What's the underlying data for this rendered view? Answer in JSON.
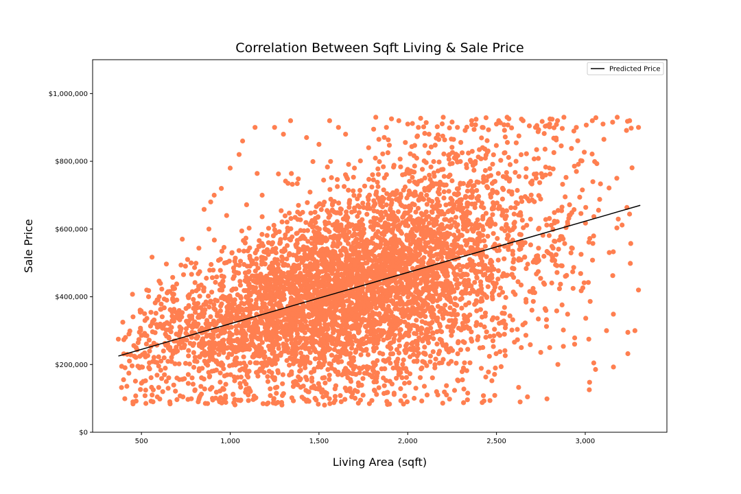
{
  "chart_data": {
    "type": "scatter",
    "title": "Correlation Between Sqft Living & Sale Price",
    "xlabel": "Living Area (sqft)",
    "ylabel": "Sale Price",
    "xlim": [
      225,
      3460
    ],
    "ylim": [
      0,
      1100000
    ],
    "x_ticks": [
      500,
      1000,
      1500,
      2000,
      2500,
      3000
    ],
    "x_tick_labels": [
      "500",
      "1,000",
      "1,500",
      "2,000",
      "2,500",
      "3,000"
    ],
    "y_ticks": [
      0,
      200000,
      400000,
      600000,
      800000,
      1000000
    ],
    "y_tick_labels": [
      "$0",
      "$200,000",
      "$400,000",
      "$600,000",
      "$800,000",
      "$1,000,000"
    ],
    "grid": false,
    "legend_position": "top-right",
    "point_color": "#ff7f50",
    "line_color": "#000000",
    "series": [
      {
        "kind": "points",
        "sample": [
          [
            370,
            275000
          ],
          [
            395,
            325000
          ],
          [
            410,
            280000
          ],
          [
            420,
            230000
          ],
          [
            430,
            290000
          ],
          [
            470,
            250000
          ],
          [
            480,
            195000
          ],
          [
            500,
            145000
          ],
          [
            510,
            150000
          ],
          [
            520,
            330000
          ],
          [
            525,
            85000
          ],
          [
            530,
            420000
          ],
          [
            540,
            400000
          ],
          [
            560,
            110000
          ],
          [
            565,
            90000
          ],
          [
            590,
            310000
          ],
          [
            600,
            400000
          ],
          [
            610,
            210000
          ],
          [
            620,
            120000
          ],
          [
            640,
            150000
          ],
          [
            650,
            415000
          ],
          [
            660,
            90000
          ],
          [
            680,
            340000
          ],
          [
            700,
            160000
          ],
          [
            720,
            300000
          ],
          [
            730,
            570000
          ],
          [
            760,
            510000
          ],
          [
            780,
            500000
          ],
          [
            800,
            210000
          ],
          [
            820,
            90000
          ],
          [
            850,
            420000
          ],
          [
            880,
            600000
          ],
          [
            890,
            680000
          ],
          [
            900,
            100000
          ],
          [
            910,
            700000
          ],
          [
            950,
            720000
          ],
          [
            980,
            640000
          ],
          [
            1000,
            780000
          ],
          [
            1020,
            240000
          ],
          [
            1050,
            820000
          ],
          [
            1070,
            860000
          ],
          [
            1110,
            520000
          ],
          [
            1140,
            900000
          ],
          [
            1180,
            700000
          ],
          [
            1220,
            180000
          ],
          [
            1250,
            900000
          ],
          [
            1300,
            880000
          ],
          [
            1340,
            920000
          ],
          [
            1380,
            650000
          ],
          [
            1430,
            870000
          ],
          [
            1500,
            850000
          ],
          [
            1560,
            920000
          ],
          [
            1610,
            900000
          ],
          [
            1650,
            880000
          ],
          [
            1700,
            780000
          ],
          [
            1780,
            840000
          ],
          [
            1820,
            930000
          ],
          [
            1880,
            900000
          ],
          [
            1950,
            920000
          ],
          [
            2000,
            910000
          ],
          [
            2060,
            900000
          ],
          [
            2120,
            880000
          ],
          [
            2200,
            930000
          ],
          [
            2280,
            900000
          ],
          [
            2360,
            920000
          ],
          [
            2420,
            900000
          ],
          [
            2500,
            910000
          ],
          [
            2560,
            930000
          ],
          [
            2650,
            920000
          ],
          [
            2720,
            900000
          ],
          [
            2800,
            910000
          ],
          [
            2880,
            930000
          ],
          [
            2950,
            900000
          ],
          [
            3040,
            920000
          ],
          [
            3100,
            910000
          ],
          [
            3180,
            930000
          ],
          [
            3250,
            920000
          ],
          [
            3300,
            900000
          ],
          [
            3280,
            300000
          ],
          [
            3240,
            295000
          ],
          [
            3120,
            300000
          ],
          [
            3020,
            275000
          ],
          [
            2940,
            260000
          ],
          [
            2800,
            250000
          ],
          [
            2640,
            250000
          ],
          [
            2480,
            270000
          ],
          [
            2320,
            205000
          ],
          [
            2200,
            215000
          ],
          [
            2080,
            190000
          ],
          [
            1950,
            170000
          ],
          [
            1830,
            175000
          ],
          [
            1680,
            150000
          ],
          [
            1520,
            160000
          ],
          [
            1380,
            140000
          ],
          [
            1260,
            115000
          ],
          [
            1140,
            100000
          ],
          [
            1060,
            95000
          ],
          [
            940,
            90000
          ],
          [
            860,
            85000
          ],
          [
            3300,
            420000
          ]
        ]
      }
    ],
    "regression": {
      "label": "Predicted Price",
      "x": [
        370,
        3310
      ],
      "y": [
        225000,
        670000
      ]
    }
  }
}
